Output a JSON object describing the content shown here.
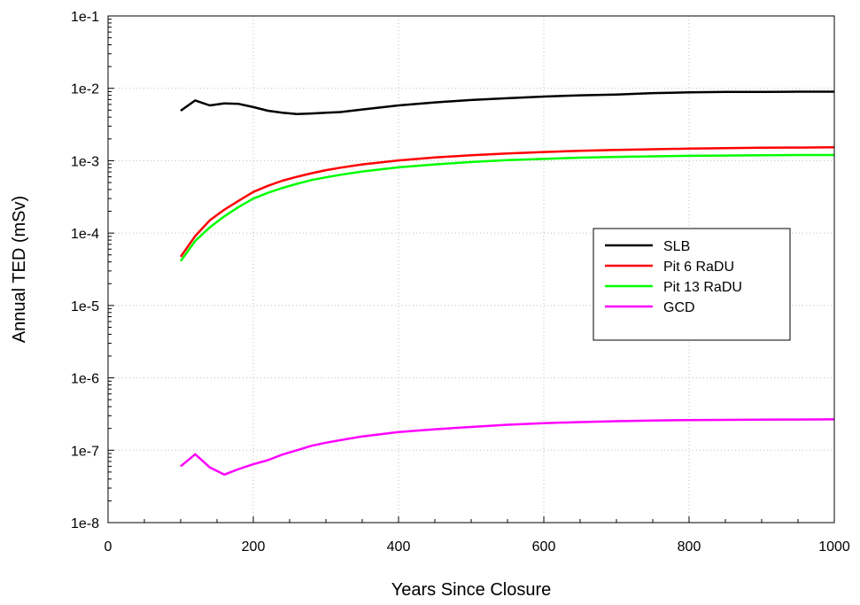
{
  "chart_data": {
    "type": "line",
    "xlabel": "Years Since Closure",
    "ylabel": "Annual TED (mSv)",
    "xlim": [
      0,
      1000
    ],
    "ylim": [
      1e-08,
      0.1
    ],
    "yscale": "log",
    "grid": true,
    "legend_position": "center-right",
    "x_ticks": [
      0,
      200,
      400,
      600,
      800,
      1000
    ],
    "x_tick_labels": [
      "0",
      "200",
      "400",
      "600",
      "800",
      "1000"
    ],
    "y_ticks": [
      1e-08,
      1e-07,
      1e-06,
      1e-05,
      0.0001,
      0.001,
      0.01,
      0.1
    ],
    "y_tick_labels": [
      "1e-8",
      "1e-7",
      "1e-6",
      "1e-5",
      "1e-4",
      "1e-3",
      "1e-2",
      "1e-1"
    ],
    "series": [
      {
        "name": "SLB",
        "color": "#000000",
        "x": [
          100,
          120,
          140,
          160,
          180,
          200,
          220,
          240,
          260,
          280,
          300,
          320,
          350,
          400,
          450,
          500,
          550,
          600,
          650,
          700,
          750,
          800,
          850,
          900,
          950,
          1000
        ],
        "y": [
          0.0049,
          0.0068,
          0.0058,
          0.0062,
          0.0061,
          0.0055,
          0.0049,
          0.0046,
          0.0044,
          0.0045,
          0.0046,
          0.0047,
          0.0051,
          0.0058,
          0.0064,
          0.0069,
          0.0073,
          0.0077,
          0.008,
          0.0082,
          0.0086,
          0.0088,
          0.0089,
          0.0089,
          0.009,
          0.009
        ]
      },
      {
        "name": "Pit 6 RaDU",
        "color": "#ff0000",
        "x": [
          100,
          120,
          140,
          160,
          180,
          200,
          220,
          240,
          260,
          280,
          300,
          320,
          350,
          400,
          450,
          500,
          550,
          600,
          650,
          700,
          750,
          800,
          850,
          900,
          950,
          1000
        ],
        "y": [
          4.7e-05,
          9.1e-05,
          0.00015,
          0.00021,
          0.00028,
          0.00037,
          0.00045,
          0.00053,
          0.0006,
          0.00067,
          0.00074,
          0.0008,
          0.00089,
          0.00101,
          0.00111,
          0.00119,
          0.00126,
          0.00132,
          0.00137,
          0.00141,
          0.00144,
          0.00147,
          0.00149,
          0.00151,
          0.00152,
          0.00153
        ]
      },
      {
        "name": "Pit 13 RaDU",
        "color": "#00ff00",
        "x": [
          100,
          120,
          140,
          160,
          180,
          200,
          220,
          240,
          260,
          280,
          300,
          320,
          350,
          400,
          450,
          500,
          550,
          600,
          650,
          700,
          750,
          800,
          850,
          900,
          950,
          1000
        ],
        "y": [
          4.1e-05,
          7.8e-05,
          0.00012,
          0.00017,
          0.00023,
          0.0003,
          0.00036,
          0.00042,
          0.00048,
          0.00054,
          0.00059,
          0.00064,
          0.00071,
          0.00081,
          0.00089,
          0.00096,
          0.00102,
          0.00106,
          0.0011,
          0.00113,
          0.00115,
          0.00117,
          0.00118,
          0.00119,
          0.0012,
          0.0012
        ]
      },
      {
        "name": "GCD",
        "color": "#ff00ff",
        "x": [
          100,
          120,
          140,
          160,
          180,
          200,
          220,
          240,
          260,
          280,
          300,
          320,
          350,
          400,
          450,
          500,
          550,
          600,
          650,
          700,
          750,
          800,
          850,
          900,
          950,
          1000
        ],
        "y": [
          6e-08,
          8.8e-08,
          5.8e-08,
          4.6e-08,
          5.5e-08,
          6.4e-08,
          7.3e-08,
          8.7e-08,
          1e-07,
          1.15e-07,
          1.27e-07,
          1.38e-07,
          1.55e-07,
          1.78e-07,
          1.95e-07,
          2.1e-07,
          2.25e-07,
          2.37e-07,
          2.45e-07,
          2.52e-07,
          2.57e-07,
          2.61e-07,
          2.63e-07,
          2.65e-07,
          2.66e-07,
          2.67e-07
        ]
      }
    ]
  }
}
